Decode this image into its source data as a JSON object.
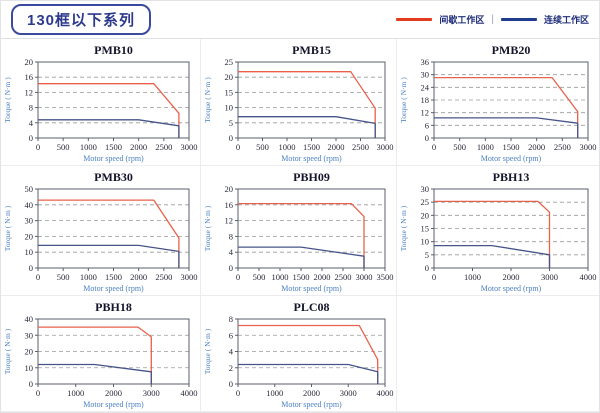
{
  "header": {
    "title": "130框以下系列"
  },
  "legend": {
    "intermittent_label": "间歇工作区",
    "continuous_label": "连续工作区",
    "separator": "|",
    "intermittent_color": "#e23b1e",
    "continuous_color": "#1f3d8c"
  },
  "colors": {
    "red_curve": "#e8614a",
    "blue_curve": "#46548a",
    "gridline": "#9a9a9a",
    "frame": "#5a5f6e",
    "tick_text": "#2a2a3a",
    "title_text": "#14142a",
    "axis_label": "#4a7fc1"
  },
  "chart_data": [
    {
      "type": "line",
      "title": "PMB10",
      "xlabel": "Motor speed (rpm)",
      "ylabel": "Torque ( N·m )",
      "xlim": [
        0,
        3000
      ],
      "ylim": [
        0,
        20
      ],
      "xticks": [
        0,
        500,
        1000,
        1500,
        2000,
        2500,
        3000
      ],
      "yticks": [
        0,
        4,
        8,
        12,
        16,
        20
      ],
      "grid": "dashed-horizontal",
      "legend_position": "none",
      "series": [
        {
          "name": "间歇工作区",
          "color_key": "red_curve",
          "points": [
            [
              0,
              14.3
            ],
            [
              2300,
              14.3
            ],
            [
              2800,
              6.5
            ],
            [
              2800,
              0
            ]
          ]
        },
        {
          "name": "连续工作区",
          "color_key": "blue_curve",
          "points": [
            [
              0,
              4.8
            ],
            [
              2000,
              4.8
            ],
            [
              2800,
              3.2
            ],
            [
              2800,
              0
            ]
          ]
        }
      ]
    },
    {
      "type": "line",
      "title": "PMB15",
      "xlabel": "Motor speed (rpm)",
      "ylabel": "Torque ( N·m )",
      "xlim": [
        0,
        3000
      ],
      "ylim": [
        0,
        25
      ],
      "xticks": [
        0,
        500,
        1000,
        1500,
        2000,
        2500,
        3000
      ],
      "yticks": [
        0,
        5,
        10,
        15,
        20,
        25
      ],
      "grid": "dashed-horizontal",
      "legend_position": "none",
      "series": [
        {
          "name": "间歇工作区",
          "color_key": "red_curve",
          "points": [
            [
              0,
              21.8
            ],
            [
              2300,
              21.8
            ],
            [
              2800,
              9.8
            ],
            [
              2800,
              0
            ]
          ]
        },
        {
          "name": "连续工作区",
          "color_key": "blue_curve",
          "points": [
            [
              0,
              7
            ],
            [
              2000,
              7
            ],
            [
              2800,
              4.8
            ],
            [
              2800,
              0
            ]
          ]
        }
      ]
    },
    {
      "type": "line",
      "title": "PMB20",
      "xlabel": "Motor speed (rpm)",
      "ylabel": "Torque ( N·m )",
      "xlim": [
        0,
        3000
      ],
      "ylim": [
        0,
        36
      ],
      "xticks": [
        0,
        500,
        1000,
        1500,
        2000,
        2500,
        3000
      ],
      "yticks": [
        0,
        6,
        12,
        18,
        24,
        30,
        36
      ],
      "grid": "dashed-horizontal",
      "legend_position": "none",
      "series": [
        {
          "name": "间歇工作区",
          "color_key": "red_curve",
          "points": [
            [
              0,
              28.6
            ],
            [
              2300,
              28.6
            ],
            [
              2800,
              12.5
            ],
            [
              2800,
              0
            ]
          ]
        },
        {
          "name": "连续工作区",
          "color_key": "blue_curve",
          "points": [
            [
              0,
              9.5
            ],
            [
              2000,
              9.5
            ],
            [
              2800,
              7
            ],
            [
              2800,
              0
            ]
          ]
        }
      ]
    },
    {
      "type": "line",
      "title": "PMB30",
      "xlabel": "Motor speed (rpm)",
      "ylabel": "Torque ( N·m )",
      "xlim": [
        0,
        3000
      ],
      "ylim": [
        0,
        50
      ],
      "xticks": [
        0,
        500,
        1000,
        1500,
        2000,
        2500,
        3000
      ],
      "yticks": [
        0,
        10,
        20,
        30,
        40,
        50
      ],
      "grid": "dashed-horizontal",
      "legend_position": "none",
      "series": [
        {
          "name": "间歇工作区",
          "color_key": "red_curve",
          "points": [
            [
              0,
              43
            ],
            [
              2300,
              43
            ],
            [
              2800,
              19
            ],
            [
              2800,
              0
            ]
          ]
        },
        {
          "name": "连续工作区",
          "color_key": "blue_curve",
          "points": [
            [
              0,
              14.3
            ],
            [
              2000,
              14.3
            ],
            [
              2800,
              10.5
            ],
            [
              2800,
              0
            ]
          ]
        }
      ]
    },
    {
      "type": "line",
      "title": "PBH09",
      "xlabel": "Motor speed (rpm)",
      "ylabel": "Torque ( N·m )",
      "xlim": [
        0,
        3500
      ],
      "ylim": [
        0,
        20
      ],
      "xticks": [
        0,
        500,
        1000,
        1500,
        2000,
        2500,
        3000,
        3500
      ],
      "yticks": [
        0,
        4,
        8,
        12,
        16,
        20
      ],
      "grid": "dashed-horizontal",
      "legend_position": "none",
      "series": [
        {
          "name": "间歇工作区",
          "color_key": "red_curve",
          "points": [
            [
              0,
              16.3
            ],
            [
              2700,
              16.3
            ],
            [
              3000,
              13
            ],
            [
              3000,
              0
            ]
          ]
        },
        {
          "name": "连续工作区",
          "color_key": "blue_curve",
          "points": [
            [
              0,
              5.3
            ],
            [
              1500,
              5.3
            ],
            [
              3000,
              3
            ],
            [
              3000,
              0
            ]
          ]
        }
      ]
    },
    {
      "type": "line",
      "title": "PBH13",
      "xlabel": "Motor speed (rpm)",
      "ylabel": "Torque ( N·m )",
      "xlim": [
        0,
        4000
      ],
      "ylim": [
        0,
        30
      ],
      "xticks": [
        0,
        1000,
        2000,
        3000,
        4000
      ],
      "yticks": [
        0,
        5,
        10,
        15,
        20,
        25,
        30
      ],
      "grid": "dashed-horizontal",
      "legend_position": "none",
      "series": [
        {
          "name": "间歇工作区",
          "color_key": "red_curve",
          "points": [
            [
              0,
              25.3
            ],
            [
              2700,
              25.3
            ],
            [
              3000,
              21.2
            ],
            [
              3000,
              0
            ]
          ]
        },
        {
          "name": "连续工作区",
          "color_key": "blue_curve",
          "points": [
            [
              0,
              8.5
            ],
            [
              1500,
              8.5
            ],
            [
              3000,
              5
            ],
            [
              3000,
              0
            ]
          ]
        }
      ]
    },
    {
      "type": "line",
      "title": "PBH18",
      "xlabel": "Motor speed (rpm)",
      "ylabel": "Torque ( N·m )",
      "xlim": [
        0,
        4000
      ],
      "ylim": [
        0,
        40
      ],
      "xticks": [
        0,
        1000,
        2000,
        3000,
        4000
      ],
      "yticks": [
        0,
        10,
        20,
        30,
        40
      ],
      "grid": "dashed-horizontal",
      "legend_position": "none",
      "series": [
        {
          "name": "间歇工作区",
          "color_key": "red_curve",
          "points": [
            [
              0,
              35
            ],
            [
              2650,
              35
            ],
            [
              3000,
              29
            ],
            [
              3000,
              0
            ]
          ]
        },
        {
          "name": "连续工作区",
          "color_key": "blue_curve",
          "points": [
            [
              0,
              12
            ],
            [
              1500,
              12
            ],
            [
              3000,
              7.5
            ],
            [
              3000,
              0
            ]
          ]
        }
      ]
    },
    {
      "type": "line",
      "title": "PLC08",
      "xlabel": "Motor speed (rpm)",
      "ylabel": "Torque ( N·m )",
      "xlim": [
        0,
        4000
      ],
      "ylim": [
        0,
        8
      ],
      "xticks": [
        0,
        1000,
        2000,
        3000,
        4000
      ],
      "yticks": [
        0,
        2,
        4,
        6,
        8
      ],
      "grid": "dashed-horizontal",
      "legend_position": "none",
      "series": [
        {
          "name": "间歇工作区",
          "color_key": "red_curve",
          "points": [
            [
              0,
              7.2
            ],
            [
              3300,
              7.2
            ],
            [
              3800,
              3
            ],
            [
              3800,
              0
            ]
          ]
        },
        {
          "name": "连续工作区",
          "color_key": "blue_curve",
          "points": [
            [
              0,
              2.4
            ],
            [
              3000,
              2.4
            ],
            [
              3800,
              1.5
            ],
            [
              3800,
              0
            ]
          ]
        }
      ]
    }
  ]
}
